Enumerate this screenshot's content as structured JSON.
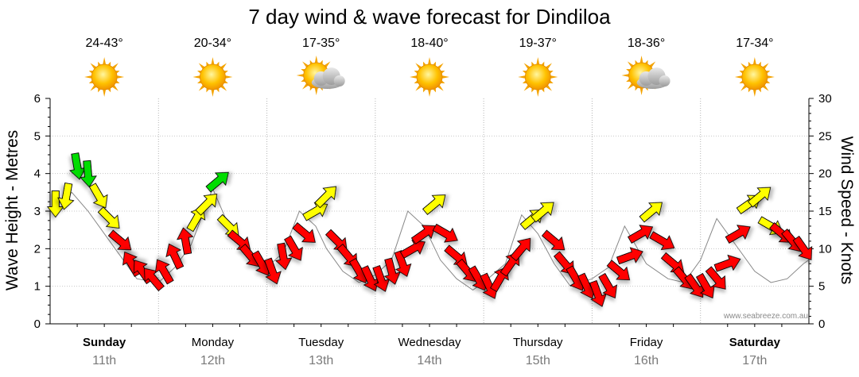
{
  "chart_data": {
    "type": "line",
    "title": "7 day wind & wave forecast for Dindiloa",
    "ylabel": "Wave Height - Metres",
    "y2label": "Wind Speed - Knots",
    "ylim": [
      0,
      6
    ],
    "y2lim": [
      0,
      30
    ],
    "yticks": [
      "0",
      "1",
      "2",
      "3",
      "4",
      "5",
      "6"
    ],
    "y2ticks": [
      "0",
      "5",
      "10",
      "15",
      "20",
      "25",
      "30"
    ],
    "credit": "www.seabreeze.com.au",
    "days": [
      {
        "name": "Sunday",
        "date": "11th",
        "temp": "24-43°",
        "weather": "sunny",
        "bold": true
      },
      {
        "name": "Monday",
        "date": "12th",
        "temp": "20-34°",
        "weather": "sunny",
        "bold": false
      },
      {
        "name": "Tuesday",
        "date": "13th",
        "temp": "17-35°",
        "weather": "partly-cloudy",
        "bold": false
      },
      {
        "name": "Wednesday",
        "date": "14th",
        "temp": "18-40°",
        "weather": "sunny",
        "bold": false
      },
      {
        "name": "Thursday",
        "date": "15th",
        "temp": "19-37°",
        "weather": "sunny",
        "bold": false
      },
      {
        "name": "Friday",
        "date": "16th",
        "temp": "18-36°",
        "weather": "partly-cloudy",
        "bold": false
      },
      {
        "name": "Saturday",
        "date": "17th",
        "temp": "17-34°",
        "weather": "sunny",
        "bold": true
      }
    ],
    "color_scale": {
      "light": "#ff0000",
      "moderate": "#ffff00",
      "strong": "#00dd00"
    },
    "wave": {
      "x": [
        0,
        0.2,
        0.35,
        0.5,
        0.65,
        0.8,
        1.0,
        1.15,
        1.3,
        1.5,
        1.65,
        1.75,
        1.85,
        2.0,
        2.15,
        2.3,
        2.45,
        2.55,
        2.7,
        2.85,
        3.0,
        3.15,
        3.3,
        3.45,
        3.6,
        3.75,
        3.9,
        4.0,
        4.2,
        4.35,
        4.5,
        4.65,
        4.8,
        5.0,
        5.15,
        5.3,
        5.5,
        5.7,
        5.85,
        6.0,
        6.15,
        6.3,
        6.5,
        6.65,
        6.8,
        6.95,
        7.0
      ],
      "values": [
        3.0,
        3.5,
        3.0,
        2.4,
        1.8,
        1.2,
        1.1,
        1.5,
        2.1,
        3.6,
        2.6,
        2.2,
        1.8,
        1.5,
        1.9,
        3.0,
        2.6,
        2.0,
        1.4,
        1.1,
        1.3,
        1.7,
        3.0,
        2.6,
        1.7,
        1.2,
        0.9,
        1.1,
        1.6,
        2.9,
        2.4,
        1.6,
        1.0,
        1.2,
        1.5,
        2.6,
        1.6,
        1.2,
        1.1,
        1.7,
        2.8,
        2.2,
        1.4,
        1.1,
        1.2,
        1.6,
        1.7
      ]
    },
    "wind": {
      "x": [
        0.05,
        0.15,
        0.25,
        0.35,
        0.45,
        0.55,
        0.65,
        0.75,
        0.85,
        0.95,
        1.05,
        1.15,
        1.25,
        1.35,
        1.45,
        1.55,
        1.65,
        1.75,
        1.85,
        1.95,
        2.05,
        2.15,
        2.25,
        2.35,
        2.45,
        2.55,
        2.65,
        2.75,
        2.85,
        2.95,
        3.05,
        3.15,
        3.25,
        3.35,
        3.45,
        3.55,
        3.65,
        3.75,
        3.85,
        3.95,
        4.05,
        4.15,
        4.25,
        4.35,
        4.45,
        4.55,
        4.65,
        4.75,
        4.85,
        4.95,
        5.05,
        5.15,
        5.25,
        5.35,
        5.45,
        5.55,
        5.65,
        5.75,
        5.85,
        5.95,
        6.05,
        6.15,
        6.25,
        6.35,
        6.45,
        6.55,
        6.65,
        6.75,
        6.85,
        6.95
      ],
      "values": [
        16,
        17,
        21,
        20,
        17,
        14,
        11,
        8,
        7,
        6,
        7,
        9,
        11,
        14,
        16,
        19,
        13,
        11,
        9,
        8,
        7,
        9,
        10,
        12,
        15,
        17,
        11,
        9,
        7,
        6,
        6,
        7,
        8,
        10,
        12,
        16,
        12,
        9,
        7,
        6,
        5,
        6,
        8,
        10,
        14,
        15,
        11,
        8,
        6,
        5,
        4,
        5,
        7,
        9,
        12,
        15,
        11,
        8,
        6,
        5,
        5,
        6,
        8,
        12,
        16,
        17,
        13,
        12,
        11,
        10
      ],
      "directions_deg": [
        270,
        260,
        280,
        275,
        300,
        315,
        320,
        120,
        125,
        130,
        120,
        115,
        100,
        60,
        45,
        40,
        315,
        320,
        310,
        300,
        290,
        280,
        300,
        320,
        30,
        45,
        315,
        310,
        300,
        295,
        290,
        285,
        290,
        30,
        35,
        40,
        330,
        320,
        310,
        300,
        295,
        60,
        55,
        50,
        40,
        40,
        320,
        310,
        300,
        295,
        290,
        300,
        320,
        20,
        30,
        40,
        330,
        320,
        310,
        305,
        300,
        310,
        20,
        30,
        35,
        40,
        330,
        320,
        310,
        305
      ]
    }
  }
}
